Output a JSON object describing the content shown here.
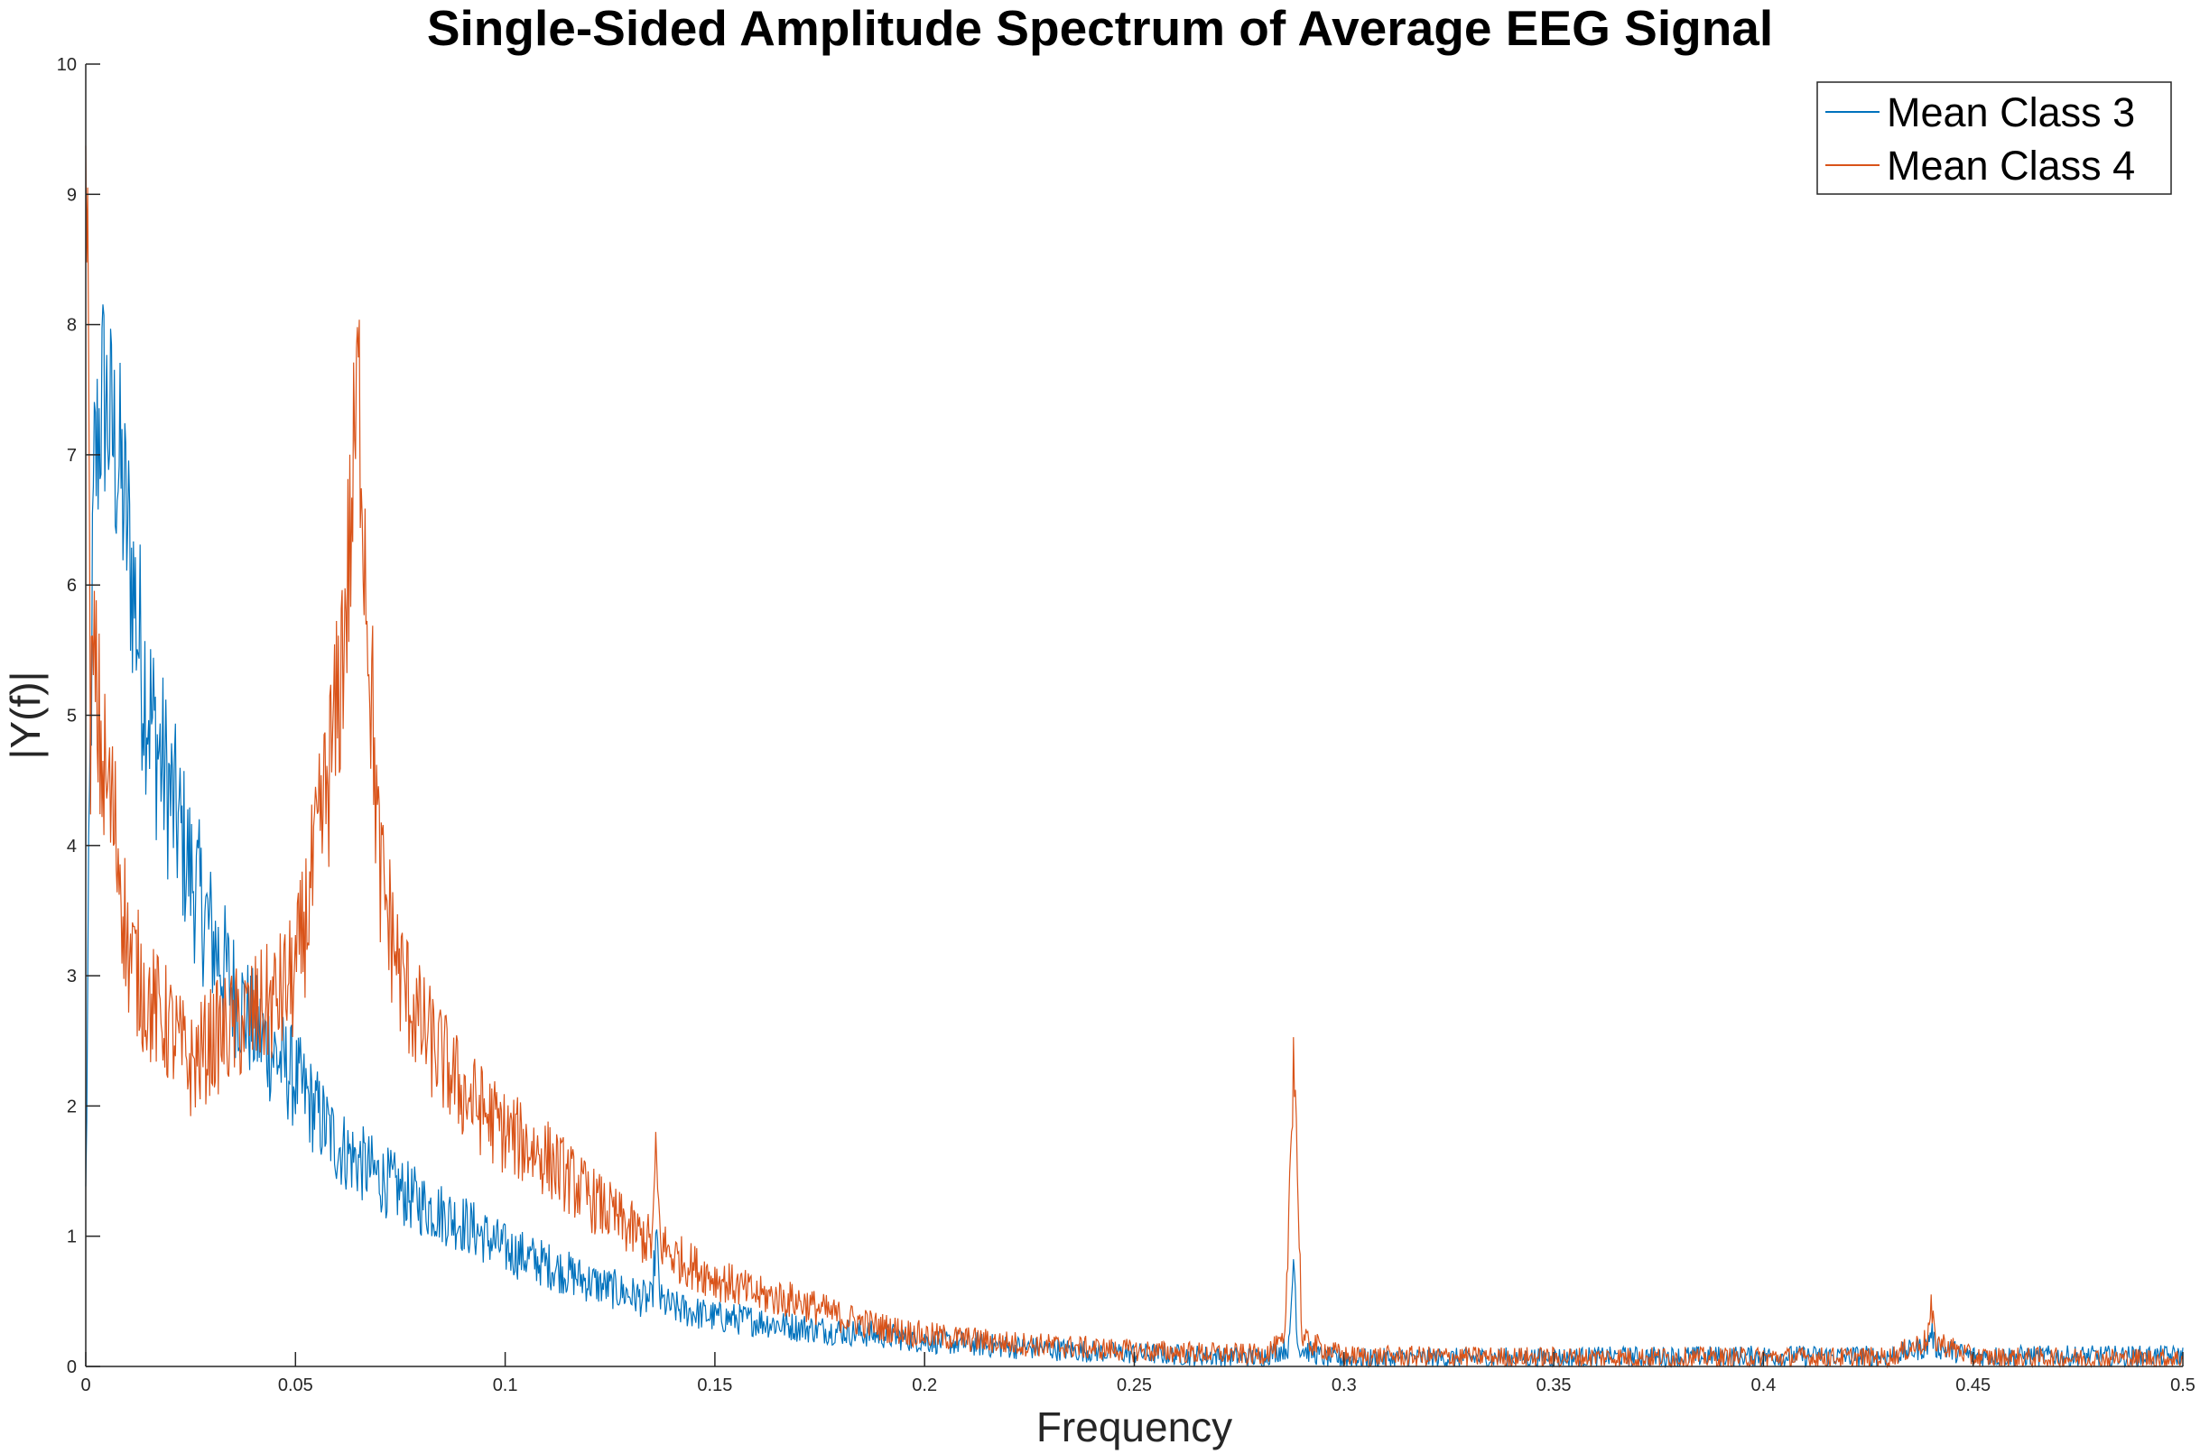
{
  "chart_data": {
    "type": "line",
    "title": "Single-Sided Amplitude Spectrum of Average EEG Signal",
    "xlabel": "Frequency",
    "ylabel": "|Y(f)|",
    "xlim": [
      0,
      0.5
    ],
    "ylim": [
      0,
      10
    ],
    "xticks": [
      0,
      0.05,
      0.1,
      0.15,
      0.2,
      0.25,
      0.3,
      0.35,
      0.4,
      0.45,
      0.5
    ],
    "xtick_labels": [
      "0",
      "0.05",
      "0.1",
      "0.15",
      "0.2",
      "0.25",
      "0.3",
      "0.35",
      "0.4",
      "0.45",
      "0.5"
    ],
    "yticks": [
      0,
      1,
      2,
      3,
      4,
      5,
      6,
      7,
      8,
      9,
      10
    ],
    "ytick_labels": [
      "0",
      "1",
      "2",
      "3",
      "4",
      "5",
      "6",
      "7",
      "8",
      "9",
      "10"
    ],
    "grid": false,
    "legend_position": "top-right",
    "series": [
      {
        "name": "Mean Class 3",
        "color": "#0072BD",
        "x": [
          0,
          0.001,
          0.002,
          0.004,
          0.006,
          0.008,
          0.01,
          0.013,
          0.016,
          0.02,
          0.025,
          0.03,
          0.035,
          0.04,
          0.045,
          0.05,
          0.06,
          0.07,
          0.08,
          0.09,
          0.1,
          0.11,
          0.12,
          0.13,
          0.135,
          0.136,
          0.137,
          0.14,
          0.15,
          0.16,
          0.17,
          0.18,
          0.19,
          0.2,
          0.22,
          0.25,
          0.28,
          0.287,
          0.288,
          0.289,
          0.295,
          0.3,
          0.35,
          0.4,
          0.43,
          0.439,
          0.44,
          0.441,
          0.45,
          0.5
        ],
        "y": [
          1.3,
          4.5,
          6.8,
          7.5,
          7.2,
          6.9,
          6.4,
          5.5,
          4.9,
          4.4,
          3.8,
          3.3,
          2.9,
          2.6,
          2.4,
          2.2,
          1.7,
          1.45,
          1.25,
          1.1,
          0.9,
          0.78,
          0.65,
          0.55,
          0.5,
          1.0,
          0.5,
          0.45,
          0.38,
          0.35,
          0.3,
          0.27,
          0.24,
          0.2,
          0.15,
          0.1,
          0.07,
          0.15,
          0.88,
          0.15,
          0.07,
          0.06,
          0.07,
          0.08,
          0.08,
          0.15,
          0.28,
          0.15,
          0.08,
          0.08
        ]
      },
      {
        "name": "Mean Class 4",
        "color": "#D95319",
        "x": [
          0,
          0.0005,
          0.001,
          0.002,
          0.004,
          0.006,
          0.008,
          0.01,
          0.015,
          0.02,
          0.025,
          0.03,
          0.035,
          0.04,
          0.045,
          0.05,
          0.055,
          0.06,
          0.063,
          0.065,
          0.067,
          0.07,
          0.075,
          0.08,
          0.09,
          0.1,
          0.11,
          0.12,
          0.13,
          0.135,
          0.136,
          0.137,
          0.14,
          0.15,
          0.16,
          0.17,
          0.18,
          0.19,
          0.2,
          0.22,
          0.25,
          0.28,
          0.286,
          0.288,
          0.29,
          0.3,
          0.35,
          0.4,
          0.43,
          0.439,
          0.44,
          0.441,
          0.45,
          0.5
        ],
        "y": [
          10,
          8.5,
          5.0,
          5.3,
          4.6,
          4.3,
          3.9,
          3.2,
          2.8,
          2.6,
          2.3,
          2.5,
          2.6,
          2.7,
          2.8,
          3.0,
          3.9,
          5.0,
          6.3,
          7.6,
          6.0,
          3.8,
          3.0,
          2.6,
          2.1,
          1.8,
          1.6,
          1.3,
          1.05,
          0.95,
          1.6,
          0.95,
          0.85,
          0.68,
          0.55,
          0.5,
          0.38,
          0.3,
          0.24,
          0.18,
          0.12,
          0.09,
          0.18,
          2.57,
          0.2,
          0.08,
          0.07,
          0.07,
          0.07,
          0.2,
          0.42,
          0.2,
          0.07,
          0.06
        ]
      }
    ]
  }
}
